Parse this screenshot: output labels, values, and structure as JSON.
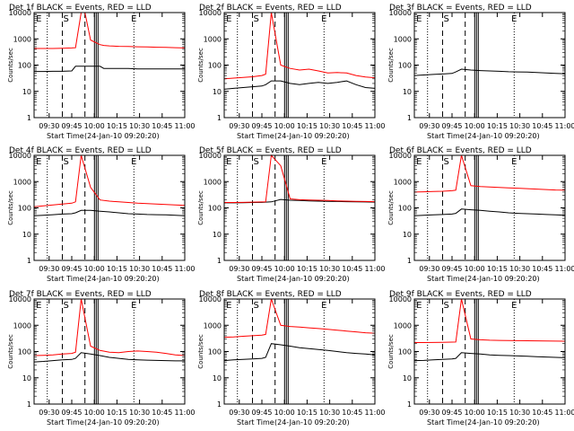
{
  "figure": {
    "xlabel_prefix": "Start Time",
    "start_time": "(24-Jan-10 09:20:20)",
    "ylabel": "Counts/sec",
    "xticks": [
      "09:30",
      "09:45",
      "10:00",
      "10:15",
      "10:30",
      "10:45",
      "11:00"
    ],
    "yticks": [
      "1",
      "10",
      "100",
      "1000",
      "10000"
    ],
    "marker_labels": [
      "E",
      "S",
      "E"
    ]
  },
  "chart_data": [
    {
      "type": "line",
      "title": "Det 1f BLACK = Events, RED = LLD",
      "xlabel": "Start Time (24-Jan-10 09:20:20)",
      "ylabel": "Counts/sec",
      "xlim": [
        "09:20",
        "11:00"
      ],
      "ylim": [
        1,
        10000
      ],
      "yscale": "log",
      "x": [
        20,
        25,
        30,
        35,
        40,
        42,
        45,
        47,
        50,
        55,
        57,
        60,
        65,
        70,
        75,
        80,
        85,
        90,
        95,
        100
      ],
      "series": [
        {
          "name": "Events",
          "color": "#000000",
          "values": [
            57,
            57,
            58,
            58,
            60,
            90,
            90,
            90,
            90,
            90,
            75,
            75,
            75,
            75,
            72,
            72,
            72,
            72,
            72,
            72
          ]
        },
        {
          "name": "LLD",
          "color": "#ff0000",
          "values": [
            430,
            430,
            430,
            440,
            450,
            460,
            12000,
            12000,
            900,
            600,
            560,
            540,
            520,
            510,
            500,
            490,
            480,
            470,
            460,
            450
          ]
        }
      ],
      "vlines_dotted": [
        27,
        73
      ],
      "vlines_dashed": [
        35,
        47
      ],
      "vlines_solid": [
        53
      ],
      "markers": [
        "E",
        "S",
        "E"
      ]
    },
    {
      "type": "line",
      "title": "Det 2f BLACK = Events, RED = LLD",
      "xlabel": "Start Time (24-Jan-10 09:20:20)",
      "ylabel": "Counts/sec",
      "xlim": [
        "09:20",
        "11:00"
      ],
      "ylim": [
        1,
        10000
      ],
      "yscale": "log",
      "x": [
        20,
        25,
        30,
        35,
        40,
        42,
        45,
        50,
        55,
        60,
        65,
        70,
        75,
        80,
        85,
        90,
        95,
        100
      ],
      "series": [
        {
          "name": "Events",
          "color": "#000000",
          "values": [
            12,
            13,
            14,
            15,
            16,
            18,
            25,
            25,
            20,
            18,
            20,
            22,
            20,
            22,
            25,
            18,
            14,
            13
          ]
        },
        {
          "name": "LLD",
          "color": "#ff0000",
          "values": [
            30,
            32,
            34,
            36,
            40,
            45,
            12000,
            100,
            75,
            65,
            70,
            60,
            50,
            52,
            50,
            40,
            35,
            33
          ]
        }
      ],
      "vlines_dotted": [
        27,
        73
      ],
      "vlines_dashed": [
        35,
        47
      ],
      "vlines_solid": [
        53
      ],
      "markers": [
        "E",
        "S",
        "E"
      ]
    },
    {
      "type": "line",
      "title": "Det 3f BLACK = Events, RED = LLD",
      "xlabel": "Start Time (24-Jan-10 09:20:20)",
      "ylabel": "Counts/sec",
      "xlim": [
        "09:20",
        "11:00"
      ],
      "ylim": [
        1,
        10000
      ],
      "yscale": "log",
      "x": [
        20,
        25,
        30,
        35,
        40,
        42,
        45,
        50,
        55,
        60,
        65,
        70,
        75,
        80,
        85,
        90,
        95,
        100
      ],
      "series": [
        {
          "name": "Events",
          "color": "#000000",
          "values": [
            40,
            42,
            44,
            46,
            48,
            55,
            70,
            65,
            62,
            60,
            58,
            56,
            55,
            54,
            52,
            50,
            48,
            47
          ]
        }
      ],
      "vlines_dotted": [
        27,
        73
      ],
      "vlines_dashed": [
        35,
        47
      ],
      "vlines_solid": [
        53
      ],
      "markers": [
        "E",
        "S",
        "E"
      ]
    },
    {
      "type": "line",
      "title": "Det 4f BLACK = Events, RED = LLD",
      "xlabel": "Start Time (24-Jan-10 09:20:20)",
      "ylabel": "Counts/sec",
      "xlim": [
        "09:20",
        "11:00"
      ],
      "ylim": [
        1,
        10000
      ],
      "yscale": "log",
      "x": [
        20,
        25,
        30,
        35,
        40,
        42,
        45,
        50,
        55,
        60,
        65,
        70,
        75,
        80,
        85,
        90,
        95,
        100
      ],
      "series": [
        {
          "name": "Events",
          "color": "#000000",
          "values": [
            50,
            52,
            55,
            58,
            60,
            65,
            80,
            80,
            75,
            70,
            65,
            60,
            58,
            56,
            55,
            54,
            52,
            50
          ]
        },
        {
          "name": "LLD",
          "color": "#ff0000",
          "values": [
            110,
            120,
            130,
            140,
            150,
            170,
            12000,
            600,
            200,
            180,
            170,
            160,
            150,
            145,
            140,
            135,
            130,
            125
          ]
        }
      ],
      "vlines_dotted": [
        27,
        73
      ],
      "vlines_dashed": [
        35,
        47
      ],
      "vlines_solid": [
        53
      ],
      "markers": [
        "E",
        "S",
        "E"
      ]
    },
    {
      "type": "line",
      "title": "Det 5f BLACK = Events, RED = LLD",
      "xlabel": "Start Time (24-Jan-10 09:20:20)",
      "ylabel": "Counts/sec",
      "xlim": [
        "09:20",
        "11:00"
      ],
      "ylim": [
        1,
        10000
      ],
      "yscale": "log",
      "x": [
        20,
        25,
        30,
        35,
        40,
        42,
        45,
        50,
        55,
        60,
        65,
        70,
        75,
        80,
        85,
        90,
        95,
        100
      ],
      "series": [
        {
          "name": "Events",
          "color": "#000000",
          "values": [
            155,
            155,
            158,
            160,
            162,
            165,
            170,
            210,
            195,
            190,
            185,
            180,
            178,
            175,
            172,
            170,
            168,
            165
          ]
        },
        {
          "name": "LLD",
          "color": "#ff0000",
          "values": [
            160,
            160,
            162,
            165,
            168,
            170,
            12000,
            4000,
            220,
            205,
            200,
            195,
            190,
            185,
            180,
            178,
            175,
            172
          ]
        }
      ],
      "vlines_dotted": [
        27,
        73
      ],
      "vlines_dashed": [
        35,
        47
      ],
      "vlines_solid": [
        53
      ],
      "markers": [
        "E",
        "S",
        "E"
      ]
    },
    {
      "type": "line",
      "title": "Det 6f BLACK = Events, RED = LLD",
      "xlabel": "Start Time (24-Jan-10 09:20:20)",
      "ylabel": "Counts/sec",
      "xlim": [
        "09:20",
        "11:00"
      ],
      "ylim": [
        1,
        10000
      ],
      "yscale": "log",
      "x": [
        20,
        25,
        30,
        35,
        40,
        42,
        45,
        50,
        55,
        60,
        65,
        70,
        75,
        80,
        85,
        90,
        95,
        100
      ],
      "series": [
        {
          "name": "Events",
          "color": "#000000",
          "values": [
            50,
            52,
            54,
            56,
            58,
            62,
            90,
            85,
            80,
            75,
            70,
            65,
            62,
            60,
            58,
            56,
            54,
            52
          ]
        },
        {
          "name": "LLD",
          "color": "#ff0000",
          "values": [
            400,
            410,
            420,
            430,
            450,
            470,
            12000,
            700,
            650,
            620,
            600,
            580,
            560,
            540,
            520,
            500,
            480,
            470
          ]
        }
      ],
      "vlines_dotted": [
        27,
        73
      ],
      "vlines_dashed": [
        35,
        47
      ],
      "vlines_solid": [
        53
      ],
      "markers": [
        "E",
        "S",
        "E"
      ]
    },
    {
      "type": "line",
      "title": "Det 7f BLACK = Events, RED = LLD",
      "xlabel": "Start Time (24-Jan-10 09:20:20)",
      "ylabel": "Counts/sec",
      "xlim": [
        "09:20",
        "11:00"
      ],
      "ylim": [
        1,
        10000
      ],
      "yscale": "log",
      "x": [
        20,
        25,
        30,
        35,
        40,
        42,
        45,
        50,
        55,
        60,
        65,
        70,
        75,
        80,
        85,
        90,
        95,
        100
      ],
      "series": [
        {
          "name": "Events",
          "color": "#000000",
          "values": [
            40,
            42,
            45,
            48,
            50,
            55,
            90,
            80,
            70,
            60,
            55,
            50,
            48,
            47,
            46,
            45,
            44,
            44
          ]
        },
        {
          "name": "LLD",
          "color": "#ff0000",
          "values": [
            70,
            72,
            75,
            80,
            85,
            95,
            12000,
            160,
            110,
            95,
            90,
            100,
            105,
            100,
            95,
            85,
            75,
            70
          ]
        }
      ],
      "vlines_dotted": [
        27,
        73
      ],
      "vlines_dashed": [
        35,
        47
      ],
      "vlines_solid": [
        53
      ],
      "markers": [
        "E",
        "S",
        "E"
      ]
    },
    {
      "type": "line",
      "title": "Det 8f BLACK = Events, RED = LLD",
      "xlabel": "Start Time (24-Jan-10 09:20:20)",
      "ylabel": "Counts/sec",
      "xlim": [
        "09:20",
        "11:00"
      ],
      "ylim": [
        1,
        10000
      ],
      "yscale": "log",
      "x": [
        20,
        25,
        30,
        35,
        40,
        42,
        45,
        50,
        55,
        60,
        65,
        70,
        75,
        80,
        85,
        90,
        95,
        100
      ],
      "series": [
        {
          "name": "Events",
          "color": "#000000",
          "values": [
            45,
            48,
            50,
            52,
            55,
            60,
            200,
            180,
            160,
            140,
            130,
            120,
            110,
            100,
            90,
            85,
            80,
            75
          ]
        },
        {
          "name": "LLD",
          "color": "#ff0000",
          "values": [
            350,
            360,
            380,
            400,
            420,
            450,
            12000,
            1000,
            900,
            850,
            800,
            750,
            700,
            650,
            600,
            560,
            520,
            500
          ]
        }
      ],
      "vlines_dotted": [
        27,
        73
      ],
      "vlines_dashed": [
        35,
        47
      ],
      "vlines_solid": [
        53
      ],
      "markers": [
        "E",
        "S",
        "E"
      ]
    },
    {
      "type": "line",
      "title": "Det 9f BLACK = Events, RED = LLD",
      "xlabel": "Start Time (24-Jan-10 09:20:20)",
      "ylabel": "Counts/sec",
      "xlim": [
        "09:20",
        "11:00"
      ],
      "ylim": [
        1,
        10000
      ],
      "yscale": "log",
      "x": [
        20,
        25,
        30,
        35,
        40,
        42,
        45,
        50,
        55,
        60,
        65,
        70,
        75,
        80,
        85,
        90,
        95,
        100
      ],
      "series": [
        {
          "name": "Events",
          "color": "#000000",
          "values": [
            45,
            46,
            48,
            50,
            52,
            55,
            90,
            85,
            80,
            75,
            72,
            70,
            68,
            66,
            64,
            62,
            60,
            58
          ]
        },
        {
          "name": "LLD",
          "color": "#ff0000",
          "values": [
            220,
            220,
            222,
            225,
            228,
            230,
            12000,
            300,
            280,
            270,
            265,
            262,
            260,
            258,
            255,
            252,
            250,
            248
          ]
        }
      ],
      "vlines_dotted": [
        27,
        73
      ],
      "vlines_dashed": [
        35,
        47
      ],
      "vlines_solid": [
        53
      ],
      "markers": [
        "E",
        "S",
        "E"
      ]
    }
  ]
}
